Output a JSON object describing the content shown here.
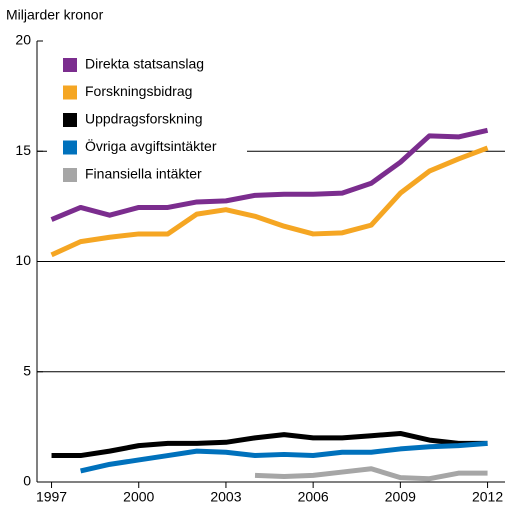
{
  "chart_data": {
    "type": "line",
    "y_label": "Miljarder kronor",
    "x": [
      1997,
      1998,
      1999,
      2000,
      2001,
      2002,
      2003,
      2004,
      2005,
      2006,
      2007,
      2008,
      2009,
      2010,
      2011,
      2012
    ],
    "series": [
      {
        "name": "Direkta statsanslag",
        "color": "#7b2d8e",
        "values": [
          11.9,
          12.45,
          12.1,
          12.45,
          12.45,
          12.7,
          12.75,
          13.0,
          13.05,
          13.05,
          13.1,
          13.55,
          14.5,
          15.7,
          15.65,
          15.95
        ]
      },
      {
        "name": "Forskningsbidrag",
        "color": "#f5a623",
        "values": [
          10.3,
          10.9,
          11.1,
          11.25,
          11.25,
          12.15,
          12.35,
          12.05,
          11.6,
          11.25,
          11.3,
          11.65,
          13.1,
          14.1,
          14.65,
          15.15
        ]
      },
      {
        "name": "Uppdragsforskning",
        "color": "#000000",
        "values": [
          1.2,
          1.2,
          1.4,
          1.65,
          1.75,
          1.75,
          1.8,
          2.0,
          2.15,
          2.0,
          2.0,
          2.1,
          2.2,
          1.9,
          1.75,
          1.75
        ]
      },
      {
        "name": "Övriga avgiftsintäkter",
        "color": "#0071bc",
        "values": [
          null,
          0.5,
          0.8,
          1.0,
          1.2,
          1.4,
          1.35,
          1.2,
          1.25,
          1.2,
          1.35,
          1.35,
          1.5,
          1.6,
          1.65,
          1.75
        ]
      },
      {
        "name": "Finansiella intäkter",
        "color": "#a6a6a6",
        "values": [
          null,
          null,
          null,
          null,
          null,
          null,
          null,
          0.3,
          0.25,
          0.3,
          0.45,
          0.6,
          0.2,
          0.15,
          0.4,
          0.4
        ]
      }
    ],
    "xlim": [
      1996.5,
      2012.6
    ],
    "xticks": [
      1997,
      2000,
      2003,
      2006,
      2009,
      2012
    ],
    "ylim": [
      0,
      20
    ],
    "yticks": [
      0,
      5,
      10,
      15,
      20
    ],
    "grid": true,
    "legend": "upper left"
  }
}
